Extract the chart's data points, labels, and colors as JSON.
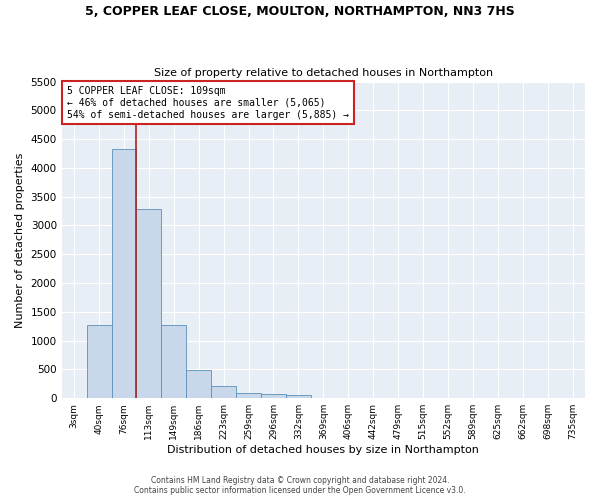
{
  "title": "5, COPPER LEAF CLOSE, MOULTON, NORTHAMPTON, NN3 7HS",
  "subtitle": "Size of property relative to detached houses in Northampton",
  "xlabel": "Distribution of detached houses by size in Northampton",
  "ylabel": "Number of detached properties",
  "bar_color": "#c8d8ea",
  "bar_edge_color": "#5a90bb",
  "background_color": "#e8eef5",
  "grid_color": "#ffffff",
  "fig_bg_color": "#ffffff",
  "categories": [
    "3sqm",
    "40sqm",
    "76sqm",
    "113sqm",
    "149sqm",
    "186sqm",
    "223sqm",
    "259sqm",
    "296sqm",
    "332sqm",
    "369sqm",
    "406sqm",
    "442sqm",
    "479sqm",
    "515sqm",
    "552sqm",
    "589sqm",
    "625sqm",
    "662sqm",
    "698sqm",
    "735sqm"
  ],
  "values": [
    0,
    1265,
    4330,
    3290,
    1280,
    490,
    210,
    90,
    75,
    55,
    0,
    0,
    0,
    0,
    0,
    0,
    0,
    0,
    0,
    0,
    0
  ],
  "vline_x": 2.5,
  "vline_color": "#aa2222",
  "annotation_line1": "5 COPPER LEAF CLOSE: 109sqm",
  "annotation_line2": "← 46% of detached houses are smaller (5,065)",
  "annotation_line3": "54% of semi-detached houses are larger (5,885) →",
  "annotation_box_color": "#ffffff",
  "annotation_box_edge": "#cc2222",
  "ylim": [
    0,
    5500
  ],
  "yticks": [
    0,
    500,
    1000,
    1500,
    2000,
    2500,
    3000,
    3500,
    4000,
    4500,
    5000,
    5500
  ],
  "footer1": "Contains HM Land Registry data © Crown copyright and database right 2024.",
  "footer2": "Contains public sector information licensed under the Open Government Licence v3.0."
}
